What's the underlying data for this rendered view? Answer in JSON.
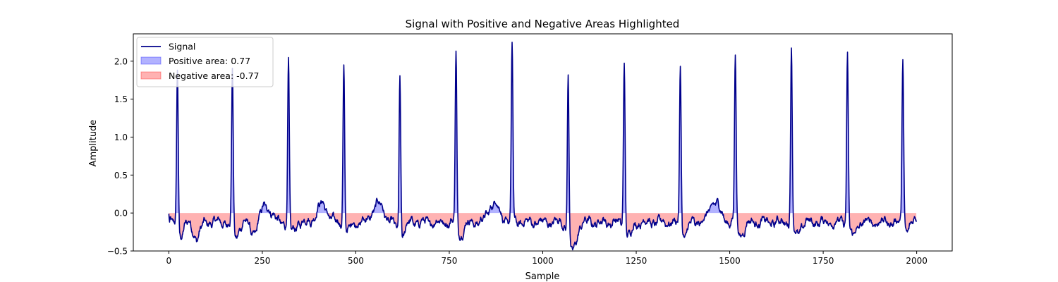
{
  "chart_data": {
    "type": "area",
    "title": "Signal with Positive and Negative Areas Highlighted",
    "xlabel": "Sample",
    "ylabel": "Amplitude",
    "xlim": [
      -95,
      2095
    ],
    "ylim": [
      -0.5,
      2.36
    ],
    "xticks": [
      0,
      250,
      500,
      750,
      1000,
      1250,
      1500,
      1750,
      2000
    ],
    "yticks": [
      -0.5,
      0.0,
      0.5,
      1.0,
      1.5,
      2.0
    ],
    "grid": false,
    "legend_position": "top-left",
    "n_samples": 2000,
    "peaks": [
      {
        "x": 23,
        "y": 2.07
      },
      {
        "x": 170,
        "y": 2.02
      },
      {
        "x": 320,
        "y": 2.08
      },
      {
        "x": 468,
        "y": 2.07
      },
      {
        "x": 618,
        "y": 2.06
      },
      {
        "x": 768,
        "y": 2.19
      },
      {
        "x": 918,
        "y": 2.23
      },
      {
        "x": 1068,
        "y": 2.08
      },
      {
        "x": 1218,
        "y": 2.09
      },
      {
        "x": 1368,
        "y": 2.07
      },
      {
        "x": 1515,
        "y": 2.17
      },
      {
        "x": 1665,
        "y": 2.19
      },
      {
        "x": 1815,
        "y": 2.17
      },
      {
        "x": 1963,
        "y": 2.14
      }
    ],
    "troughs": [
      {
        "x": 30,
        "y": -0.3
      },
      {
        "x": 75,
        "y": -0.33
      },
      {
        "x": 178,
        "y": -0.31
      },
      {
        "x": 228,
        "y": -0.28
      },
      {
        "x": 328,
        "y": -0.25
      },
      {
        "x": 475,
        "y": -0.25
      },
      {
        "x": 620,
        "y": -0.35
      },
      {
        "x": 780,
        "y": -0.28
      },
      {
        "x": 1075,
        "y": -0.37
      },
      {
        "x": 1085,
        "y": -0.33
      },
      {
        "x": 1230,
        "y": -0.3
      },
      {
        "x": 1378,
        "y": -0.3
      },
      {
        "x": 1530,
        "y": -0.28
      },
      {
        "x": 1680,
        "y": -0.28
      },
      {
        "x": 1830,
        "y": -0.3
      },
      {
        "x": 1975,
        "y": -0.22
      },
      {
        "x": 2000,
        "y": -0.08
      }
    ],
    "bumps": [
      {
        "x": 260,
        "y": 0.1
      },
      {
        "x": 410,
        "y": 0.12
      },
      {
        "x": 560,
        "y": 0.13
      },
      {
        "x": 870,
        "y": 0.14
      },
      {
        "x": 1460,
        "y": 0.15
      }
    ],
    "series": [
      {
        "name": "Signal",
        "color": "#00008b",
        "kind": "line"
      },
      {
        "name": "Positive area: 0.77",
        "color": "#0000ff",
        "kind": "fill-positive",
        "alpha": 0.3
      },
      {
        "name": "Negative area: -0.77",
        "color": "#ff0000",
        "kind": "fill-negative",
        "alpha": 0.3
      }
    ]
  }
}
